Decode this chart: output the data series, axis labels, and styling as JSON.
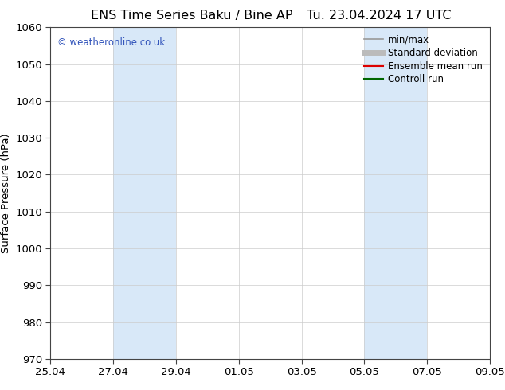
{
  "title_left": "ENS Time Series Baku / Bine AP",
  "title_right": "Tu. 23.04.2024 17 UTC",
  "ylabel": "Surface Pressure (hPa)",
  "ylim": [
    970,
    1060
  ],
  "yticks": [
    970,
    980,
    990,
    1000,
    1010,
    1020,
    1030,
    1040,
    1050,
    1060
  ],
  "xtick_labels": [
    "25.04",
    "27.04",
    "29.04",
    "01.05",
    "03.05",
    "05.05",
    "07.05",
    "09.05"
  ],
  "xtick_positions": [
    0,
    2,
    4,
    6,
    8,
    10,
    12,
    14
  ],
  "shaded_regions": [
    {
      "x_start": 2,
      "x_end": 4
    },
    {
      "x_start": 10,
      "x_end": 12
    }
  ],
  "shaded_color": "#d8e8f8",
  "watermark_text": "© weatheronline.co.uk",
  "watermark_color": "#3355bb",
  "legend_entries": [
    {
      "label": "min/max",
      "color": "#999999",
      "lw": 1.2
    },
    {
      "label": "Standard deviation",
      "color": "#bbbbbb",
      "lw": 5
    },
    {
      "label": "Ensemble mean run",
      "color": "#dd0000",
      "lw": 1.5
    },
    {
      "label": "Controll run",
      "color": "#006600",
      "lw": 1.5
    }
  ],
  "bg_color": "#ffffff",
  "plot_bg_color": "#ffffff",
  "grid_color": "#cccccc",
  "tick_label_fontsize": 9.5,
  "title_fontsize": 11.5,
  "ylabel_fontsize": 9.5
}
